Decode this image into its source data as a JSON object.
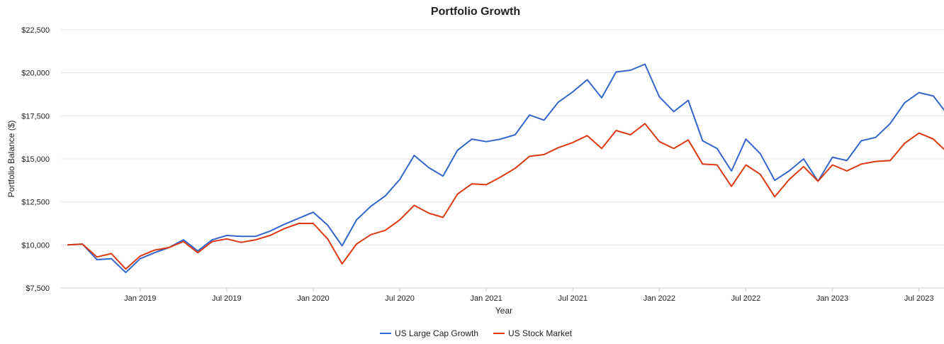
{
  "chart_data": {
    "type": "line",
    "title": "Portfolio Growth",
    "xlabel": "Year",
    "ylabel": "Portfolio Balance ($)",
    "ylim": [
      7500,
      22500
    ],
    "yticks": [
      7500,
      10000,
      12500,
      15000,
      17500,
      20000,
      22500
    ],
    "ytick_labels": [
      "$7,500",
      "$10,000",
      "$12,500",
      "$15,000",
      "$17,500",
      "$20,000",
      "$22,500"
    ],
    "x": [
      "2018-08",
      "2018-09",
      "2018-10",
      "2018-11",
      "2018-12",
      "2019-01",
      "2019-02",
      "2019-03",
      "2019-04",
      "2019-05",
      "2019-06",
      "2019-07",
      "2019-08",
      "2019-09",
      "2019-10",
      "2019-11",
      "2019-12",
      "2020-01",
      "2020-02",
      "2020-03",
      "2020-04",
      "2020-05",
      "2020-06",
      "2020-07",
      "2020-08",
      "2020-09",
      "2020-10",
      "2020-11",
      "2020-12",
      "2021-01",
      "2021-02",
      "2021-03",
      "2021-04",
      "2021-05",
      "2021-06",
      "2021-07",
      "2021-08",
      "2021-09",
      "2021-10",
      "2021-11",
      "2021-12",
      "2022-01",
      "2022-02",
      "2022-03",
      "2022-04",
      "2022-05",
      "2022-06",
      "2022-07",
      "2022-08",
      "2022-09",
      "2022-10",
      "2022-11",
      "2022-12",
      "2023-01",
      "2023-02",
      "2023-03",
      "2023-04",
      "2023-05",
      "2023-06",
      "2023-07",
      "2023-08",
      "2023-09"
    ],
    "xticks": [
      "2019-01",
      "2019-07",
      "2020-01",
      "2020-07",
      "2021-01",
      "2021-07",
      "2022-01",
      "2022-07",
      "2023-01",
      "2023-07"
    ],
    "xtick_labels": [
      "Jan 2019",
      "Jul 2019",
      "Jan 2020",
      "Jul 2020",
      "Jan 2021",
      "Jul 2021",
      "Jan 2022",
      "Jul 2022",
      "Jan 2023",
      "Jul 2023"
    ],
    "series": [
      {
        "name": "US Large Cap Growth",
        "color": "#3366cc",
        "values": [
          10000,
          10050,
          9150,
          9200,
          8400,
          9200,
          9550,
          9850,
          10300,
          9650,
          10300,
          10550,
          10500,
          10500,
          10800,
          11200,
          11550,
          11900,
          11150,
          9950,
          11450,
          12250,
          12850,
          13800,
          15200,
          14500,
          14000,
          15500,
          16150,
          16000,
          16150,
          16400,
          17550,
          17250,
          18300,
          18900,
          19600,
          18550,
          20050,
          20150,
          20500,
          18600,
          17750,
          18400,
          16050,
          15600,
          14300,
          16150,
          15300,
          13750,
          14300,
          15000,
          13700,
          15100,
          14900,
          16050,
          16250,
          17050,
          18250,
          18850,
          18650,
          17550
        ]
      },
      {
        "name": "US Stock Market",
        "color": "#dc3912",
        "values": [
          10000,
          10050,
          9300,
          9500,
          8600,
          9350,
          9700,
          9850,
          10200,
          9550,
          10200,
          10350,
          10150,
          10300,
          10550,
          10950,
          11250,
          11250,
          10350,
          8900,
          10050,
          10600,
          10850,
          11450,
          12300,
          11850,
          11600,
          12950,
          13550,
          13500,
          13950,
          14450,
          15150,
          15250,
          15650,
          15950,
          16350,
          15600,
          16650,
          16400,
          17050,
          16000,
          15600,
          16100,
          14700,
          14650,
          13400,
          14650,
          14100,
          12800,
          13800,
          14550,
          13700,
          14650,
          14300,
          14700,
          14850,
          14900,
          15900,
          16500,
          16150,
          15350
        ]
      }
    ],
    "legend_position": "bottom-center",
    "grid": true
  }
}
